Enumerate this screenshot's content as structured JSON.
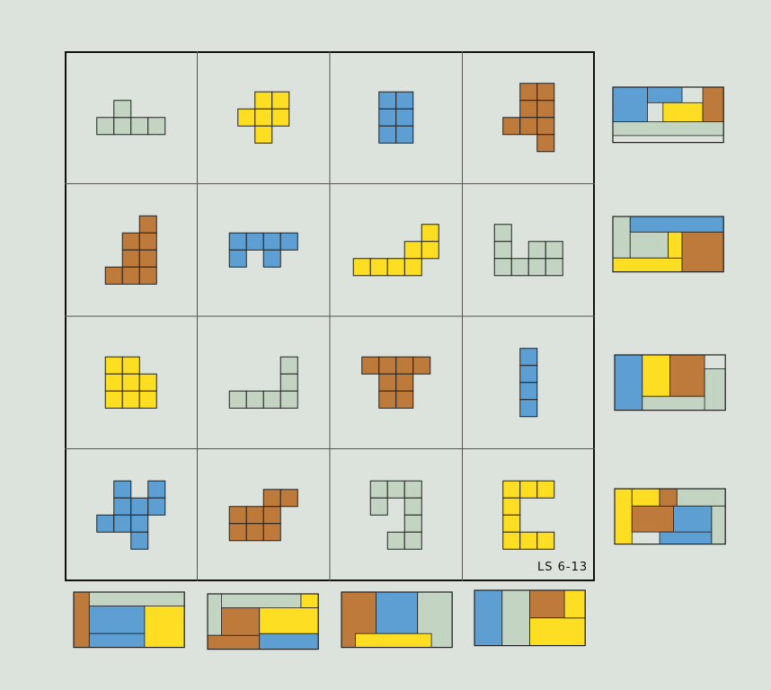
{
  "puzzle_label": "LS 6-13",
  "colors": {
    "background": "#dce3dd",
    "green": "#c3d4c3",
    "yellow": "#fede22",
    "blue": "#5d9fd2",
    "brown": "#bd7a3b",
    "outline": "#222222"
  },
  "grid": {
    "rows": 4,
    "cols": 4
  },
  "cells": [
    {
      "row": 0,
      "col": 0,
      "color": "green",
      "squares": [
        [
          0,
          1
        ],
        [
          1,
          1
        ],
        [
          2,
          1
        ],
        [
          3,
          1
        ],
        [
          1,
          0
        ]
      ]
    },
    {
      "row": 0,
      "col": 1,
      "color": "yellow",
      "squares": [
        [
          1,
          0
        ],
        [
          2,
          0
        ],
        [
          0,
          1
        ],
        [
          1,
          1
        ],
        [
          2,
          1
        ],
        [
          1,
          2
        ]
      ]
    },
    {
      "row": 0,
      "col": 2,
      "color": "blue",
      "squares": [
        [
          0,
          0
        ],
        [
          1,
          0
        ],
        [
          0,
          1
        ],
        [
          0,
          2
        ],
        [
          1,
          1
        ],
        [
          1,
          2
        ]
      ]
    },
    {
      "row": 0,
      "col": 3,
      "color": "brown",
      "squares": [
        [
          1,
          0
        ],
        [
          2,
          0
        ],
        [
          1,
          1
        ],
        [
          2,
          1
        ],
        [
          0,
          2
        ],
        [
          1,
          2
        ],
        [
          2,
          2
        ],
        [
          2,
          3
        ]
      ]
    },
    {
      "row": 1,
      "col": 0,
      "color": "brown",
      "squares": [
        [
          2,
          0
        ],
        [
          1,
          1
        ],
        [
          2,
          1
        ],
        [
          1,
          2
        ],
        [
          2,
          2
        ],
        [
          0,
          3
        ],
        [
          1,
          3
        ],
        [
          2,
          3
        ]
      ]
    },
    {
      "row": 1,
      "col": 1,
      "color": "blue",
      "squares": [
        [
          0,
          0
        ],
        [
          1,
          0
        ],
        [
          2,
          0
        ],
        [
          3,
          0
        ],
        [
          0,
          1
        ],
        [
          2,
          1
        ]
      ]
    },
    {
      "row": 1,
      "col": 2,
      "color": "yellow",
      "squares": [
        [
          4,
          0
        ],
        [
          3,
          1
        ],
        [
          4,
          1
        ],
        [
          3,
          2
        ],
        [
          0,
          2
        ],
        [
          1,
          2
        ],
        [
          2,
          2
        ]
      ]
    },
    {
      "row": 1,
      "col": 3,
      "color": "green",
      "squares": [
        [
          0,
          0
        ],
        [
          0,
          1
        ],
        [
          2,
          1
        ],
        [
          3,
          1
        ],
        [
          0,
          2
        ],
        [
          1,
          2
        ],
        [
          2,
          2
        ],
        [
          3,
          2
        ]
      ]
    },
    {
      "row": 2,
      "col": 0,
      "color": "yellow",
      "squares": [
        [
          0,
          0
        ],
        [
          1,
          0
        ],
        [
          0,
          1
        ],
        [
          1,
          1
        ],
        [
          2,
          1
        ],
        [
          0,
          2
        ],
        [
          1,
          2
        ],
        [
          2,
          2
        ]
      ]
    },
    {
      "row": 2,
      "col": 1,
      "color": "green",
      "squares": [
        [
          3,
          0
        ],
        [
          3,
          1
        ],
        [
          0,
          2
        ],
        [
          1,
          2
        ],
        [
          2,
          2
        ],
        [
          3,
          2
        ]
      ]
    },
    {
      "row": 2,
      "col": 2,
      "color": "brown",
      "squares": [
        [
          0,
          0
        ],
        [
          1,
          0
        ],
        [
          2,
          0
        ],
        [
          3,
          0
        ],
        [
          1,
          1
        ],
        [
          2,
          1
        ],
        [
          1,
          2
        ],
        [
          2,
          2
        ]
      ]
    },
    {
      "row": 2,
      "col": 3,
      "color": "blue",
      "squares": [
        [
          0,
          0
        ],
        [
          0,
          1
        ],
        [
          0,
          2
        ],
        [
          0,
          3
        ]
      ]
    },
    {
      "row": 3,
      "col": 0,
      "color": "blue",
      "squares": [
        [
          1,
          0
        ],
        [
          3,
          0
        ],
        [
          1,
          1
        ],
        [
          2,
          1
        ],
        [
          3,
          1
        ],
        [
          0,
          2
        ],
        [
          1,
          2
        ],
        [
          2,
          2
        ],
        [
          2,
          3
        ]
      ]
    },
    {
      "row": 3,
      "col": 1,
      "color": "brown",
      "squares": [
        [
          2,
          0
        ],
        [
          3,
          0
        ],
        [
          0,
          1
        ],
        [
          1,
          1
        ],
        [
          2,
          1
        ],
        [
          0,
          2
        ],
        [
          1,
          2
        ],
        [
          2,
          2
        ]
      ]
    },
    {
      "row": 3,
      "col": 2,
      "color": "green",
      "squares": [
        [
          0,
          0
        ],
        [
          1,
          0
        ],
        [
          2,
          0
        ],
        [
          0,
          1
        ],
        [
          2,
          1
        ],
        [
          2,
          2
        ],
        [
          1,
          3
        ],
        [
          2,
          3
        ]
      ]
    },
    {
      "row": 3,
      "col": 3,
      "color": "yellow",
      "squares": [
        [
          0,
          0
        ],
        [
          1,
          0
        ],
        [
          2,
          0
        ],
        [
          0,
          1
        ],
        [
          0,
          2
        ],
        [
          0,
          3
        ],
        [
          1,
          3
        ],
        [
          2,
          3
        ]
      ]
    }
  ],
  "answers": [
    {
      "id": "right-1",
      "rects": [
        [
          "blue",
          0,
          0,
          1,
          1
        ],
        [
          "blue",
          1,
          0,
          1,
          0.45
        ],
        [
          "yellow",
          1,
          0,
          1,
          0
        ],
        [
          "yellow",
          1.45,
          0.45,
          1.15,
          0.55
        ],
        [
          "brown",
          2.6,
          0,
          0.6,
          1
        ],
        [
          "green",
          0,
          1,
          3.2,
          0.4
        ]
      ]
    },
    {
      "id": "right-2",
      "rects": [
        [
          "green",
          0,
          0,
          0.5,
          1.2
        ],
        [
          "blue",
          0.5,
          0,
          2.7,
          0.45
        ],
        [
          "green",
          0.5,
          0.45,
          1.1,
          0.75
        ],
        [
          "yellow",
          0,
          1.2,
          2.0,
          0.4
        ],
        [
          "yellow",
          1.6,
          0.45,
          0.4,
          0.75
        ],
        [
          "brown",
          2.0,
          0.45,
          1.2,
          1.15
        ]
      ]
    },
    {
      "id": "right-3",
      "rects": [
        [
          "blue",
          0,
          0,
          0.8,
          1.6
        ],
        [
          "yellow",
          0.8,
          0,
          0.8,
          1.2
        ],
        [
          "brown",
          1.6,
          0,
          1.0,
          1.2
        ],
        [
          "green",
          2.6,
          0.4,
          0.6,
          1.2
        ],
        [
          "green",
          0.8,
          1.2,
          1.8,
          0.4
        ]
      ]
    },
    {
      "id": "right-4",
      "rects": [
        [
          "yellow",
          0,
          0,
          0.5,
          1.6
        ],
        [
          "yellow",
          0.5,
          0,
          0.8,
          0.5
        ],
        [
          "brown",
          0.5,
          0.5,
          1.2,
          0.75
        ],
        [
          "brown",
          1.3,
          0,
          0.5,
          0.5
        ],
        [
          "green",
          1.8,
          0,
          1.4,
          0.5
        ],
        [
          "green",
          2.8,
          0.5,
          0.4,
          1.1
        ],
        [
          "blue",
          1.3,
          1.25,
          1.5,
          0.35
        ],
        [
          "blue",
          1.7,
          0.5,
          1.1,
          0.75
        ]
      ]
    },
    {
      "id": "bottom-1",
      "rects": [
        [
          "brown",
          0,
          0,
          0.45,
          1.6
        ],
        [
          "green",
          0.45,
          0,
          2.75,
          0.4
        ],
        [
          "blue",
          0.45,
          0.4,
          1.6,
          0.8
        ],
        [
          "blue",
          0.45,
          1.2,
          1.6,
          0.4
        ],
        [
          "yellow",
          2.05,
          0.4,
          1.15,
          1.2
        ]
      ]
    },
    {
      "id": "bottom-2",
      "rects": [
        [
          "green",
          0,
          0,
          0.4,
          1.2
        ],
        [
          "green",
          0.4,
          0,
          2.3,
          0.4
        ],
        [
          "brown",
          0,
          1.2,
          1.5,
          0.4
        ],
        [
          "brown",
          0.4,
          0.4,
          1.1,
          0.8
        ],
        [
          "yellow",
          1.5,
          0.4,
          1.7,
          0.75
        ],
        [
          "yellow",
          2.7,
          0,
          0.5,
          0.4
        ],
        [
          "blue",
          1.5,
          1.15,
          1.7,
          0.45
        ]
      ]
    },
    {
      "id": "bottom-3",
      "rects": [
        [
          "brown",
          0,
          0,
          1.0,
          1.6
        ],
        [
          "blue",
          1.0,
          0,
          1.2,
          1.2
        ],
        [
          "green",
          2.2,
          0,
          1.0,
          1.6
        ],
        [
          "yellow",
          0.4,
          1.2,
          2.2,
          0.4
        ]
      ]
    },
    {
      "id": "bottom-4",
      "rects": [
        [
          "blue",
          0,
          0,
          0.8,
          1.6
        ],
        [
          "green",
          0.8,
          0,
          0.8,
          1.6
        ],
        [
          "brown",
          1.6,
          0,
          1.6,
          0.8
        ],
        [
          "yellow",
          1.6,
          0.8,
          1.6,
          0.8
        ],
        [
          "yellow",
          2.6,
          0,
          0.6,
          0.8
        ]
      ]
    }
  ]
}
